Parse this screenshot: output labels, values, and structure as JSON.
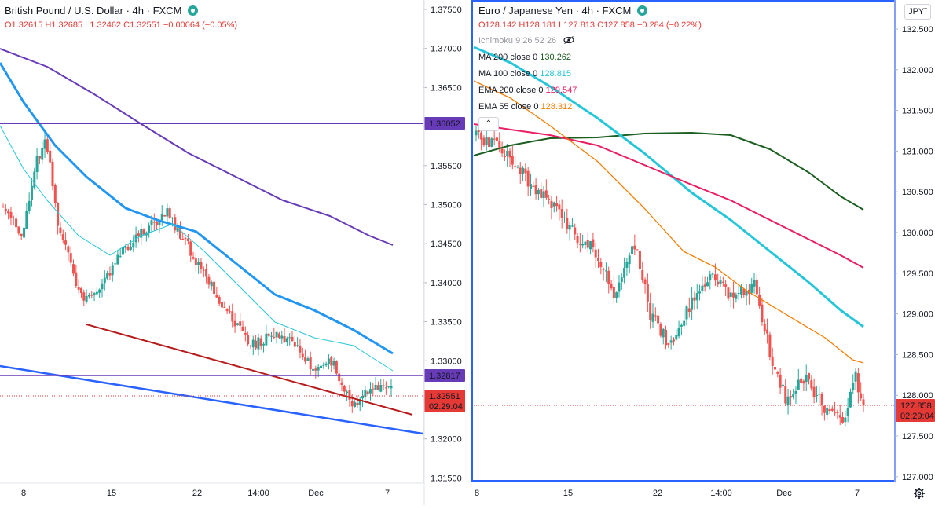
{
  "left": {
    "title": "British Pound / U.S. Dollar · 4h · FXCM",
    "ohlc": {
      "o": "O1.32615",
      "h": "H1.32685",
      "l": "L1.32462",
      "c": "C1.32551",
      "chg": "−0.00064 (−0.05%)"
    },
    "price_axis": [
      "1.37500",
      "1.37000",
      "1.36500",
      "1.36000",
      "1.35500",
      "1.35000",
      "1.34500",
      "1.34000",
      "1.33500",
      "1.33000",
      "1.32500",
      "1.32000",
      "1.31500"
    ],
    "time_axis": [
      "8",
      "15",
      "22",
      "14:00",
      "Dec",
      "7"
    ],
    "labels": {
      "hline_top": "1.36052",
      "hline_mid": "1.32817",
      "last_price": "1.32551",
      "countdown": "02:29:04"
    },
    "colors": {
      "hline": "#673ab7",
      "ma_fast": "#2196f3",
      "ma_slow": "#673ab7",
      "ma_thin": "#26c6da",
      "trend_red": "#b71c1c",
      "trend_blue": "#2962ff",
      "last": "#e53935"
    }
  },
  "right": {
    "title": "Euro / Japanese Yen · 4h · FXCM",
    "ohlc": {
      "o": "O128.142",
      "h": "H128.181",
      "l": "L127.813",
      "c": "C127.858",
      "chg": "−0.284 (−0.22%)"
    },
    "indicators": [
      {
        "label": "Ichimoku 9 26 52 26",
        "value": "",
        "color": "#9598a1"
      },
      {
        "label": "MA 200 close 0",
        "value": "130.262",
        "color": "#1b5e20"
      },
      {
        "label": "MA 100 close 0",
        "value": "128.815",
        "color": "#26c6da"
      },
      {
        "label": "EMA 200 close 0",
        "value": "129.547",
        "color": "#e91e63"
      },
      {
        "label": "EMA 55 close 0",
        "value": "128.312",
        "color": "#f57c00"
      }
    ],
    "price_axis": [
      "132.500",
      "132.000",
      "131.500",
      "131.000",
      "130.500",
      "130.000",
      "129.500",
      "129.000",
      "128.500",
      "128.000",
      "127.500",
      "127.000"
    ],
    "time_axis": [
      "8",
      "15",
      "22",
      "14:00",
      "Dec",
      "7"
    ],
    "labels": {
      "last_price": "127.858",
      "countdown": "02:29:04",
      "currency": "JPY"
    },
    "colors": {
      "ma200": "#1b5e20",
      "ma100": "#26c6da",
      "ema200": "#e91e63",
      "ema55": "#f57c00",
      "last": "#e53935",
      "frame": "#2962ff"
    }
  },
  "candle_colors": {
    "up": "#26a69a",
    "down": "#ef5350"
  }
}
